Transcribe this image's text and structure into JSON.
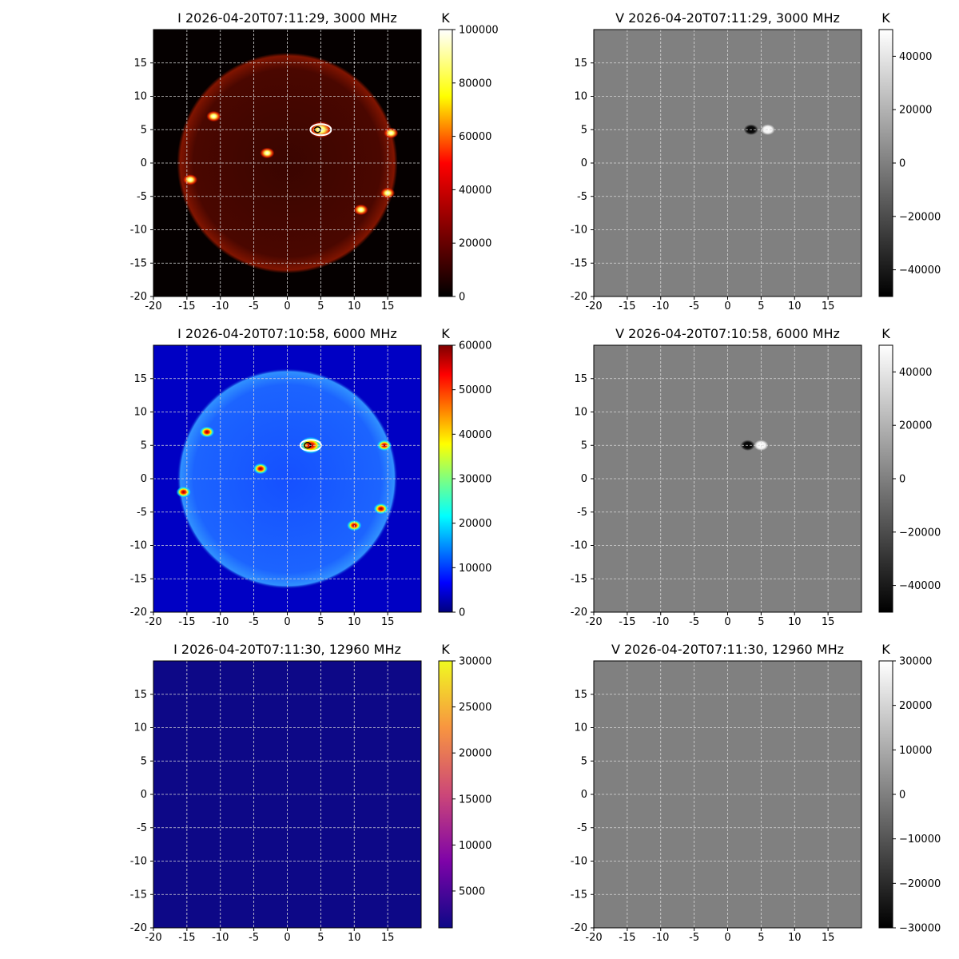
{
  "figure": {
    "panels": [
      {
        "id": "i3000",
        "title": "I 2026-04-20T07:11:29, 3000 MHz",
        "colorbar_label": "K",
        "colormap": "afmhot",
        "cbar_ticks": [
          0,
          20000,
          40000,
          60000,
          80000,
          100000
        ],
        "vmin": 0,
        "vmax": 100000,
        "disk": true
      },
      {
        "id": "v3000",
        "title": "V 2026-04-20T07:11:29, 3000 MHz",
        "colorbar_label": "K",
        "colormap": "gray",
        "cbar_ticks": [
          -40000,
          -20000,
          0,
          20000,
          40000
        ],
        "vmin": -50000,
        "vmax": 50000,
        "disk": false
      },
      {
        "id": "i6000",
        "title": "I 2026-04-20T07:10:58, 6000 MHz",
        "colorbar_label": "K",
        "colormap": "jet",
        "cbar_ticks": [
          0,
          10000,
          20000,
          30000,
          40000,
          50000,
          60000
        ],
        "vmin": 0,
        "vmax": 60000,
        "disk": true
      },
      {
        "id": "v6000",
        "title": "V 2026-04-20T07:10:58, 6000 MHz",
        "colorbar_label": "K",
        "colormap": "gray",
        "cbar_ticks": [
          -40000,
          -20000,
          0,
          20000,
          40000
        ],
        "vmin": -50000,
        "vmax": 50000,
        "disk": false
      },
      {
        "id": "i12960",
        "title": "I 2026-04-20T07:11:30, 12960 MHz",
        "colorbar_label": "K",
        "colormap": "plasma",
        "cbar_ticks": [
          5000,
          10000,
          15000,
          20000,
          25000,
          30000
        ],
        "vmin": 1000,
        "vmax": 30000,
        "disk": false
      },
      {
        "id": "v12960",
        "title": "V 2026-04-20T07:11:30, 12960 MHz",
        "colorbar_label": "K",
        "colormap": "gray",
        "cbar_ticks": [
          -30000,
          -20000,
          -10000,
          0,
          10000,
          20000,
          30000
        ],
        "vmin": -30000,
        "vmax": 30000,
        "disk": false
      }
    ],
    "x_ticks": [
      "-20",
      "-15",
      "-10",
      "-5",
      "0",
      "5",
      "10",
      "15"
    ],
    "y_ticks": [
      "15",
      "10",
      "5",
      "0",
      "-5",
      "-10",
      "-15",
      "-20"
    ]
  },
  "chart_data": [
    {
      "type": "heatmap",
      "title": "I 2026-04-20T07:11:29, 3000 MHz",
      "colorbar_label": "K",
      "xlim": [
        -20,
        20
      ],
      "ylim": [
        -20,
        20
      ],
      "clim": [
        0,
        100000
      ],
      "grid": true,
      "sources": [
        {
          "x": 5,
          "y": 5,
          "note": "bright contoured source"
        },
        {
          "x": -11,
          "y": 7
        },
        {
          "x": -14.5,
          "y": -2.5
        },
        {
          "x": 15.5,
          "y": 4.5
        },
        {
          "x": -3,
          "y": 1.5
        },
        {
          "x": 15,
          "y": -4.5
        },
        {
          "x": 11,
          "y": -7
        }
      ]
    },
    {
      "type": "heatmap",
      "title": "V 2026-04-20T07:11:29, 3000 MHz",
      "colorbar_label": "K",
      "xlim": [
        -20,
        20
      ],
      "ylim": [
        -20,
        20
      ],
      "clim": [
        -50000,
        50000
      ],
      "grid": true,
      "sources": [
        {
          "x": 3.5,
          "y": 5,
          "sign": "negative"
        },
        {
          "x": 6,
          "y": 5,
          "sign": "positive"
        }
      ]
    },
    {
      "type": "heatmap",
      "title": "I 2026-04-20T07:10:58, 6000 MHz",
      "colorbar_label": "K",
      "xlim": [
        -20,
        20
      ],
      "ylim": [
        -20,
        20
      ],
      "clim": [
        0,
        60000
      ],
      "grid": true,
      "sources": [
        {
          "x": 3.5,
          "y": 5
        },
        {
          "x": -12,
          "y": 7
        },
        {
          "x": -15.5,
          "y": -2
        },
        {
          "x": 14.5,
          "y": 5
        },
        {
          "x": 14,
          "y": -4.5
        },
        {
          "x": -4,
          "y": 1.5
        },
        {
          "x": 10,
          "y": -7
        }
      ]
    },
    {
      "type": "heatmap",
      "title": "V 2026-04-20T07:10:58, 6000 MHz",
      "colorbar_label": "K",
      "xlim": [
        -20,
        20
      ],
      "ylim": [
        -20,
        20
      ],
      "clim": [
        -50000,
        50000
      ],
      "grid": true,
      "sources": [
        {
          "x": 3,
          "y": 5,
          "sign": "negative"
        },
        {
          "x": 5,
          "y": 5,
          "sign": "positive"
        }
      ]
    },
    {
      "type": "heatmap",
      "title": "I 2026-04-20T07:11:30, 12960 MHz",
      "colorbar_label": "K",
      "xlim": [
        -20,
        20
      ],
      "ylim": [
        -20,
        20
      ],
      "clim": [
        1000,
        30000
      ],
      "grid": true,
      "sources": []
    },
    {
      "type": "heatmap",
      "title": "V 2026-04-20T07:11:30, 12960 MHz",
      "colorbar_label": "K",
      "xlim": [
        -20,
        20
      ],
      "ylim": [
        -20,
        20
      ],
      "clim": [
        -30000,
        30000
      ],
      "grid": true,
      "sources": []
    }
  ],
  "colors": {
    "grid": "#d8d8d8",
    "gray_mid": "#808080",
    "deep_blue_bg": "#0d0887"
  }
}
